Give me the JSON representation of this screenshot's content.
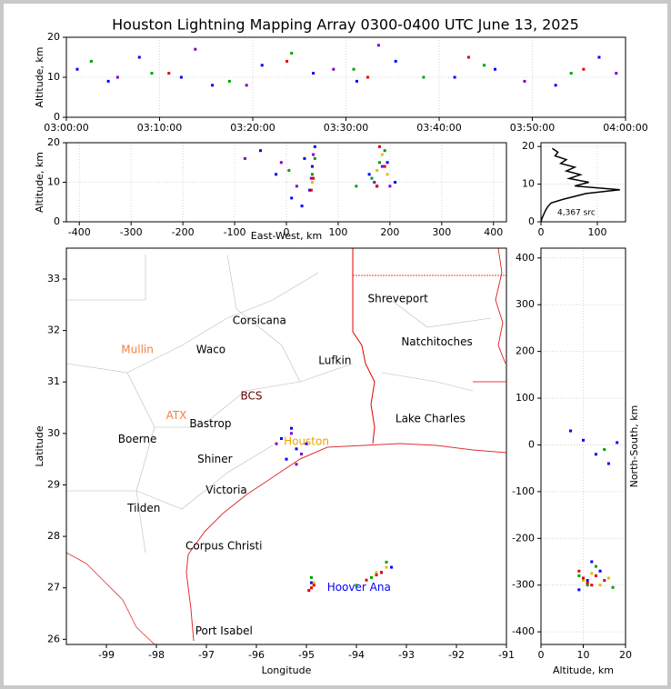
{
  "chart_data": [
    {
      "type": "scatter",
      "title": "Houston Lightning Mapping Array 0300-0400 UTC June 13, 2025",
      "ylabel": "Altitude, km",
      "xlim": [
        "03:00:00",
        "04:00:00"
      ],
      "xticks": [
        "03:00:00",
        "03:10:00",
        "03:20:00",
        "03:30:00",
        "03:40:00",
        "03:50:00",
        "04:00:00"
      ],
      "ylim": [
        0,
        20
      ],
      "yticks": [
        0,
        10,
        20
      ],
      "grid": true,
      "series": [
        {
          "color": "#0000ff",
          "x": [
            "03:01:10",
            "03:04:30",
            "03:07:50",
            "03:12:20",
            "03:15:40",
            "03:21:00",
            "03:26:30",
            "03:31:10",
            "03:35:20",
            "03:41:40",
            "03:46:00",
            "03:52:30",
            "03:57:10"
          ],
          "y": [
            12,
            9,
            15,
            10,
            8,
            13,
            11,
            9,
            14,
            10,
            12,
            8,
            15
          ]
        },
        {
          "color": "#00a000",
          "x": [
            "03:02:40",
            "03:09:10",
            "03:17:30",
            "03:24:10",
            "03:30:50",
            "03:38:20",
            "03:44:50",
            "03:54:10"
          ],
          "y": [
            14,
            11,
            9,
            16,
            12,
            10,
            13,
            11
          ]
        },
        {
          "color": "#8000c0",
          "x": [
            "03:05:30",
            "03:13:50",
            "03:19:20",
            "03:28:40",
            "03:33:30",
            "03:49:10",
            "03:59:00"
          ],
          "y": [
            10,
            17,
            8,
            12,
            18,
            9,
            11
          ]
        },
        {
          "color": "#e00000",
          "x": [
            "03:11:00",
            "03:23:40",
            "03:32:20",
            "03:43:10",
            "03:55:30"
          ],
          "y": [
            11,
            14,
            10,
            15,
            12
          ]
        }
      ]
    },
    {
      "type": "scatter",
      "xlabel": "East-West, km",
      "ylabel": "Altitude, km",
      "xlim": [
        -425,
        425
      ],
      "xticks": [
        -400,
        -300,
        -200,
        -100,
        0,
        100,
        200,
        300,
        400
      ],
      "ylim": [
        0,
        20
      ],
      "yticks": [
        0,
        10,
        20
      ],
      "grid": true,
      "series": [
        {
          "color": "#0000ff",
          "x": [
            -20,
            10,
            35,
            50,
            45,
            55,
            160,
            175,
            195,
            210,
            -50,
            30
          ],
          "y": [
            12,
            6,
            16,
            14,
            8,
            19,
            12,
            9,
            15,
            10,
            18,
            4
          ]
        },
        {
          "color": "#8000c0",
          "x": [
            -10,
            20,
            48,
            52,
            170,
            185,
            200,
            -80
          ],
          "y": [
            15,
            9,
            11,
            17,
            10,
            14,
            9,
            16
          ]
        },
        {
          "color": "#00a000",
          "x": [
            5,
            50,
            55,
            165,
            180,
            190,
            135
          ],
          "y": [
            13,
            12,
            16,
            11,
            15,
            18,
            9
          ]
        },
        {
          "color": "#e0c000",
          "x": [
            50,
            175,
            185,
            195
          ],
          "y": [
            10,
            13,
            17,
            12
          ]
        },
        {
          "color": "#e00000",
          "x": [
            48,
            52,
            175,
            190,
            180
          ],
          "y": [
            8,
            11,
            9,
            14,
            19
          ]
        }
      ]
    },
    {
      "type": "line",
      "annotation": "4,367 src",
      "xlim": [
        0,
        150
      ],
      "xticks": [
        0,
        100
      ],
      "ylim": [
        0,
        21
      ],
      "yticks": [
        0,
        10,
        20
      ],
      "grid": true,
      "series": [
        {
          "color": "#000000",
          "x": [
            0,
            2,
            5,
            8,
            12,
            18,
            40,
            80,
            140,
            60,
            85,
            50,
            70,
            45,
            60,
            35,
            45,
            25,
            30,
            20
          ],
          "y": [
            0,
            1,
            2,
            3,
            4,
            5,
            6,
            7.5,
            8.5,
            9.5,
            10.5,
            11.5,
            12.5,
            13.5,
            14.5,
            15.5,
            16.5,
            17.5,
            18.5,
            19.5
          ]
        }
      ]
    },
    {
      "type": "scatter",
      "xlabel": "Longitude",
      "ylabel": "Latitude",
      "xlim": [
        -99.8,
        -91
      ],
      "xticks": [
        -99,
        -98,
        -97,
        -96,
        -95,
        -94,
        -93,
        -92,
        -91
      ],
      "ylim": [
        25.9,
        33.6
      ],
      "yticks": [
        26,
        27,
        28,
        29,
        30,
        31,
        32,
        33
      ],
      "grid": false,
      "labels": [
        {
          "text": "Shreveport",
          "x": -93.17,
          "y": 32.61,
          "color": "#000000"
        },
        {
          "text": "Corsicana",
          "x": -95.94,
          "y": 32.19,
          "color": "#000000"
        },
        {
          "text": "Natchitoches",
          "x": -92.39,
          "y": 31.77,
          "color": "#000000"
        },
        {
          "text": "Mullin",
          "x": -98.38,
          "y": 31.62,
          "color": "#f08040"
        },
        {
          "text": "Waco",
          "x": -96.91,
          "y": 31.62,
          "color": "#000000"
        },
        {
          "text": "Lufkin",
          "x": -94.43,
          "y": 31.41,
          "color": "#000000"
        },
        {
          "text": "BCS",
          "x": -96.1,
          "y": 30.72,
          "color": "#600000"
        },
        {
          "text": "ATX",
          "x": -97.6,
          "y": 30.34,
          "color": "#f08040"
        },
        {
          "text": "Bastrop",
          "x": -96.92,
          "y": 30.18,
          "color": "#000000"
        },
        {
          "text": "Lake Charles",
          "x": -92.52,
          "y": 30.28,
          "color": "#000000"
        },
        {
          "text": "Boerne",
          "x": -98.38,
          "y": 29.88,
          "color": "#000000"
        },
        {
          "text": "Houston",
          "x": -95.0,
          "y": 29.84,
          "color": "#f0a000"
        },
        {
          "text": "Shiner",
          "x": -96.83,
          "y": 29.49,
          "color": "#000000"
        },
        {
          "text": "Victoria",
          "x": -96.6,
          "y": 28.89,
          "color": "#000000"
        },
        {
          "text": "Tilden",
          "x": -98.25,
          "y": 28.54,
          "color": "#000000"
        },
        {
          "text": "Corpus Christi",
          "x": -96.65,
          "y": 27.81,
          "color": "#000000"
        },
        {
          "text": "Hoover Ana",
          "x": -93.95,
          "y": 27.0,
          "color": "#0000ff"
        },
        {
          "text": "Port Isabel",
          "x": -96.65,
          "y": 26.16,
          "color": "#000000"
        }
      ],
      "series": [
        {
          "color": "#0000ff",
          "x": [
            -95.5,
            -95.2,
            -95.4,
            -95.0,
            -95.3,
            -94.9,
            -93.3,
            -93.5
          ],
          "y": [
            29.9,
            29.7,
            29.5,
            29.8,
            30.1,
            27.1,
            27.4,
            27.3
          ]
        },
        {
          "color": "#8000c0",
          "x": [
            -95.6,
            -95.1,
            -95.3,
            -95.2
          ],
          "y": [
            29.8,
            29.6,
            30.0,
            29.4
          ]
        },
        {
          "color": "#00a000",
          "x": [
            -94.0,
            -93.7,
            -93.4,
            -94.9
          ],
          "y": [
            27.05,
            27.2,
            27.5,
            27.2
          ]
        },
        {
          "color": "#e0c000",
          "x": [
            -93.6,
            -93.4,
            -94.85
          ],
          "y": [
            27.3,
            27.4,
            27.1
          ]
        },
        {
          "color": "#e00000",
          "x": [
            -94.9,
            -94.85,
            -93.6,
            -93.8,
            -93.5,
            -94.95
          ],
          "y": [
            27.0,
            27.05,
            27.25,
            27.15,
            27.3,
            26.95
          ]
        }
      ]
    },
    {
      "type": "scatter",
      "xlabel": "Altitude, km",
      "ylabel": "North-South, km",
      "xlim": [
        0,
        20
      ],
      "xticks": [
        0,
        10,
        20
      ],
      "ylim": [
        -427,
        421
      ],
      "yticks": [
        -400,
        -300,
        -200,
        -100,
        0,
        100,
        200,
        300,
        400
      ],
      "grid": true,
      "series": [
        {
          "color": "#0000ff",
          "x": [
            10,
            13,
            7,
            16,
            18,
            11,
            9,
            14,
            12
          ],
          "y": [
            10,
            -20,
            30,
            -40,
            5,
            -290,
            -310,
            -270,
            -250
          ]
        },
        {
          "color": "#00a000",
          "x": [
            15,
            11,
            9,
            13,
            17
          ],
          "y": [
            -10,
            -300,
            -280,
            -260,
            -305
          ]
        },
        {
          "color": "#e0c000",
          "x": [
            10,
            12,
            14,
            16
          ],
          "y": [
            -290,
            -275,
            -300,
            -285
          ]
        },
        {
          "color": "#e00000",
          "x": [
            10,
            11,
            13,
            12,
            9,
            15
          ],
          "y": [
            -285,
            -295,
            -280,
            -300,
            -270,
            -290
          ]
        }
      ]
    }
  ]
}
